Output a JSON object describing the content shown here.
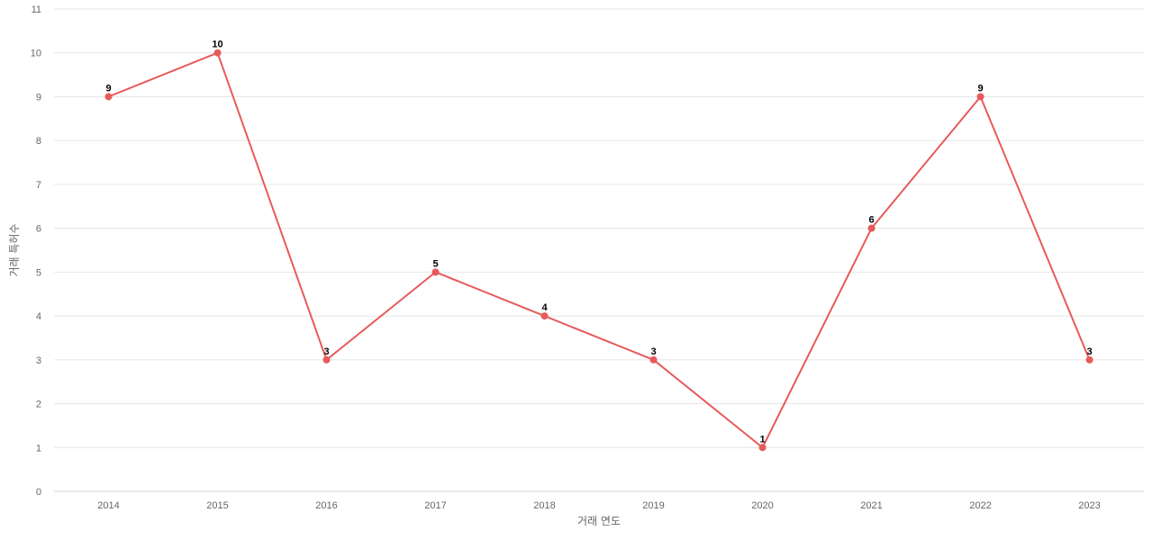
{
  "chart_data": {
    "type": "line",
    "x": [
      "2014",
      "2015",
      "2016",
      "2017",
      "2018",
      "2019",
      "2020",
      "2021",
      "2022",
      "2023"
    ],
    "series": [
      {
        "values": [
          9,
          10,
          3,
          5,
          4,
          3,
          1,
          6,
          9,
          3
        ],
        "color": "#e85a5a"
      }
    ],
    "xlabel": "거래 연도",
    "ylabel": "거래 특허수",
    "ylim": [
      0,
      11
    ],
    "yticks": [
      0,
      1,
      2,
      3,
      4,
      5,
      6,
      7,
      8,
      9,
      10,
      11
    ],
    "grid": true,
    "data_labels": true
  }
}
